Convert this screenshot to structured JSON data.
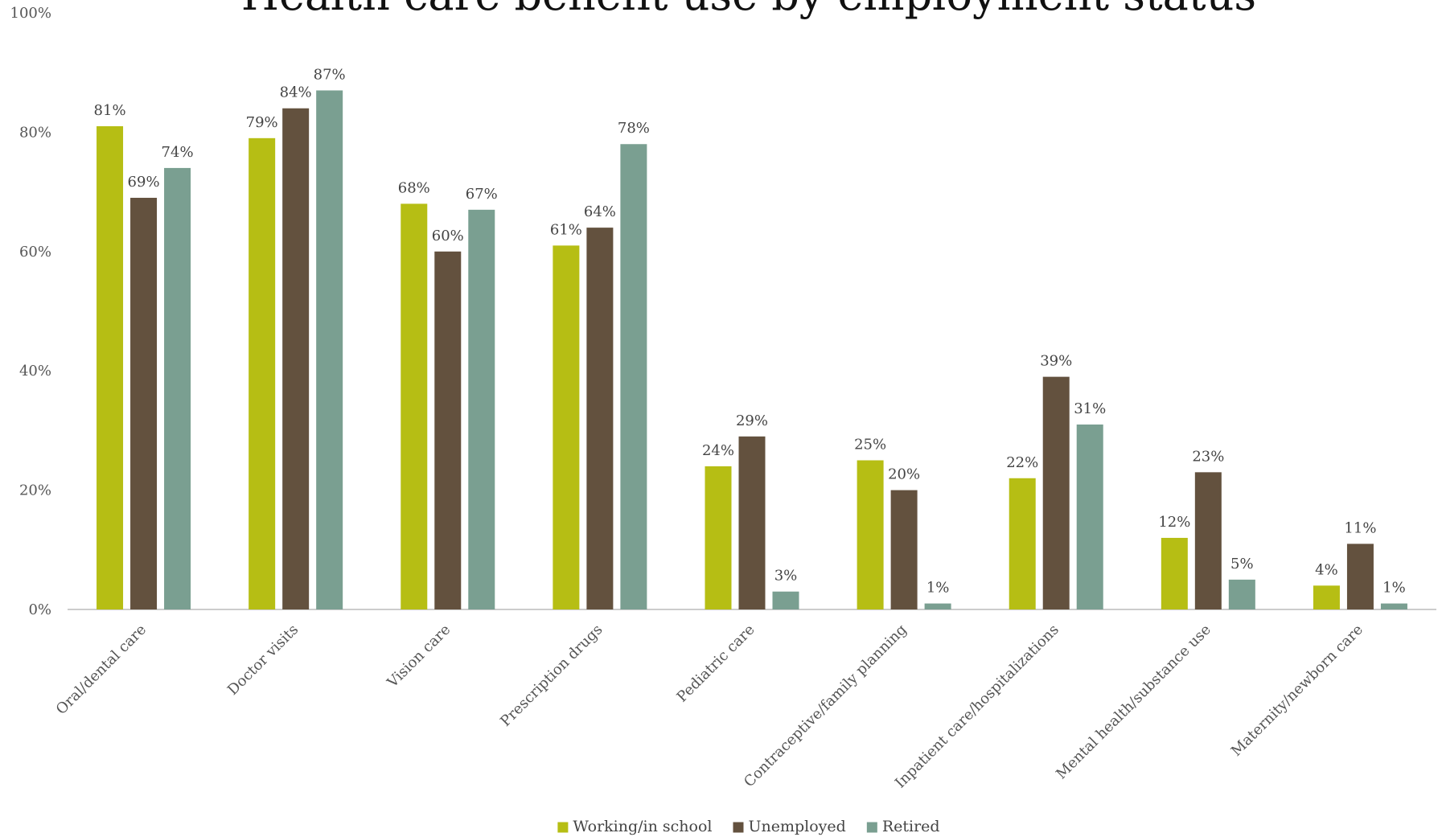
{
  "chart_data": {
    "type": "bar",
    "title": "Health care benefit use by employment status",
    "categories": [
      "Oral/dental care",
      "Doctor visits",
      "Vision care",
      "Prescription drugs",
      "Pediatric care",
      "Contraceptive/family planning",
      "Inpatient care/hospitalizations",
      "Mental health/substance use",
      "Maternity/newborn care"
    ],
    "series": [
      {
        "name": "Working/in school",
        "color": "#b6be14",
        "values": [
          81,
          79,
          68,
          61,
          24,
          25,
          22,
          12,
          4
        ],
        "labels": [
          "81%",
          "79%",
          "68%",
          "61%",
          "24%",
          "25%",
          "22%",
          "12%",
          "4%"
        ]
      },
      {
        "name": "Unemployed",
        "color": "#63513e",
        "values": [
          69,
          84,
          60,
          64,
          29,
          20,
          39,
          23,
          11
        ],
        "labels": [
          "69%",
          "84%",
          "60%",
          "64%",
          "29%",
          "20%",
          "39%",
          "23%",
          "11%"
        ]
      },
      {
        "name": "Retired",
        "color": "#7a9f91",
        "values": [
          74,
          87,
          67,
          78,
          3,
          1,
          31,
          5,
          1
        ],
        "labels": [
          "74%",
          "87%",
          "67%",
          "78%",
          "3%",
          "1%",
          "31%",
          "5%",
          "1%"
        ]
      }
    ],
    "yticks": [
      0,
      20,
      40,
      60,
      80,
      100
    ],
    "ytick_labels": [
      "0%",
      "20%",
      "40%",
      "60%",
      "80%",
      "100%"
    ],
    "ylim": [
      0,
      100
    ],
    "grid": false,
    "legend_position": "bottom-center",
    "xlabel": "",
    "ylabel": ""
  }
}
